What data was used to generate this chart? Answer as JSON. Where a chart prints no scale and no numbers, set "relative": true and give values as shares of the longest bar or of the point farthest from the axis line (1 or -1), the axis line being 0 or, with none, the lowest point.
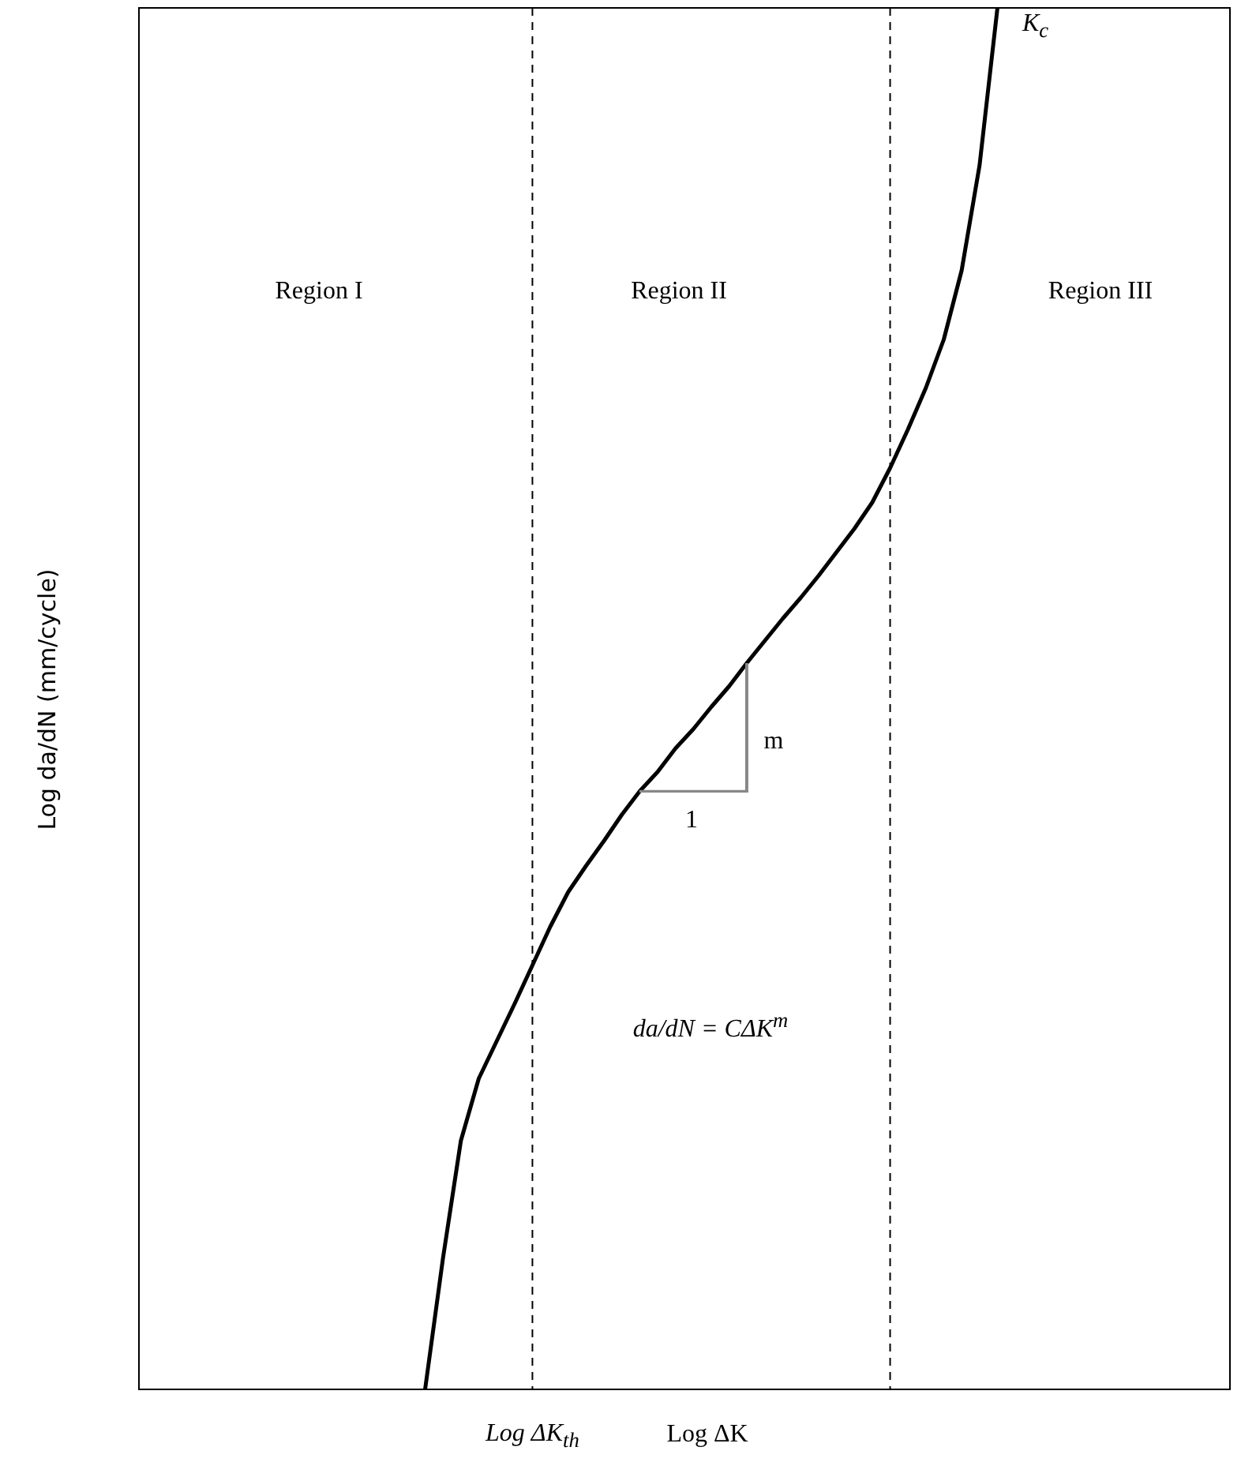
{
  "chart_data": {
    "type": "line",
    "relative": true,
    "xlabel": "Log  ΔK",
    "ylabel": "Log da/dN (mm/cycle)",
    "categories": [
      null,
      null,
      null,
      null,
      null,
      null,
      null,
      null,
      null,
      null,
      null,
      null,
      null,
      null,
      null,
      null,
      null,
      null,
      null,
      null,
      null,
      null,
      null,
      null,
      null,
      null,
      null,
      null,
      null,
      null,
      null,
      null,
      null,
      null,
      null,
      null,
      null,
      null,
      null,
      null,
      null,
      null,
      null,
      null,
      null,
      null,
      null,
      null,
      null,
      null,
      null,
      null,
      null,
      null,
      null,
      null,
      null,
      null,
      null,
      null,
      null,
      null
    ],
    "series": [
      {
        "color": "#000000",
        "values": [
          null,
          null,
          null,
          null,
          null,
          null,
          null,
          null,
          null,
          null,
          null,
          null,
          null,
          null,
          null,
          null,
          0,
          0.095,
          0.18,
          0.225,
          0.252,
          0.279,
          0.307,
          0.335,
          0.36,
          0.379,
          0.397,
          0.416,
          0.433,
          0.447,
          0.464,
          0.478,
          0.494,
          0.509,
          0.526,
          0.542,
          0.558,
          0.573,
          0.589,
          0.606,
          0.623,
          0.642,
          0.667,
          0.695,
          0.725,
          0.76,
          0.81,
          0.886,
          1.0,
          null,
          null,
          null,
          null,
          null,
          null,
          null,
          null,
          null,
          null,
          null,
          null,
          null
        ]
      }
    ],
    "grid": false,
    "legend": false,
    "marker": "none",
    "line_style": "solid",
    "annotations": [
      "Region I",
      "Region II",
      "Region III",
      "m",
      "1",
      "da/dN = CΔK$^{m}$",
      "K$_{c}$",
      "Log ΔK$_{th}$"
    ]
  }
}
